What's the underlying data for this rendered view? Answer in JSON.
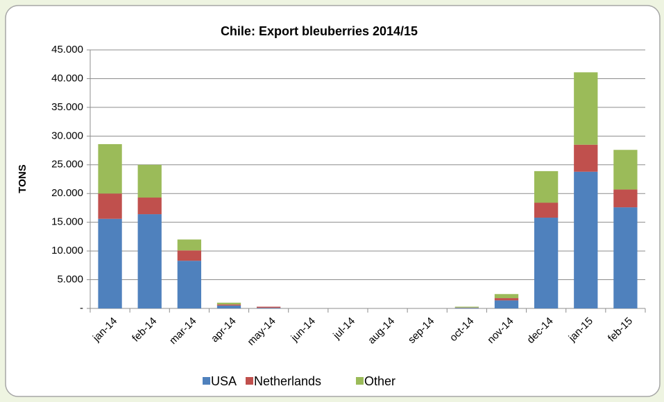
{
  "chart_data": {
    "type": "stacked_bar",
    "title": "Chile: Export bleuberries 2014/15",
    "y_label": "TONS",
    "categories": [
      "jan-14",
      "feb-14",
      "mar-14",
      "apr-14",
      "may-14",
      "jun-14",
      "jul-14",
      "aug-14",
      "sep-14",
      "oct-14",
      "nov-14",
      "dec-14",
      "jan-15",
      "feb-15"
    ],
    "series": [
      {
        "name": "USA",
        "color": "#4f81bd",
        "values": [
          15600,
          16400,
          8300,
          500,
          100,
          0,
          0,
          0,
          0,
          100,
          1400,
          15800,
          23800,
          17600
        ]
      },
      {
        "name": "Netherlands",
        "color": "#c0504d",
        "values": [
          4400,
          2900,
          1800,
          200,
          200,
          0,
          0,
          0,
          0,
          50,
          400,
          2600,
          4700,
          3100
        ]
      },
      {
        "name": "Other",
        "color": "#9bbb59",
        "values": [
          8600,
          5700,
          1900,
          300,
          0,
          0,
          0,
          0,
          0,
          150,
          700,
          5500,
          12600,
          6900
        ]
      }
    ],
    "ylim": [
      0,
      45000
    ],
    "yticks": [
      {
        "value": 0,
        "label": "-"
      },
      {
        "value": 5000,
        "label": "5.000"
      },
      {
        "value": 10000,
        "label": "10.000"
      },
      {
        "value": 15000,
        "label": "15.000"
      },
      {
        "value": 20000,
        "label": "20.000"
      },
      {
        "value": 25000,
        "label": "25.000"
      },
      {
        "value": 30000,
        "label": "30.000"
      },
      {
        "value": 35000,
        "label": "35.000"
      },
      {
        "value": 40000,
        "label": "40.000"
      },
      {
        "value": 45000,
        "label": "45.000"
      }
    ],
    "grid": true,
    "legend": "bottom"
  }
}
